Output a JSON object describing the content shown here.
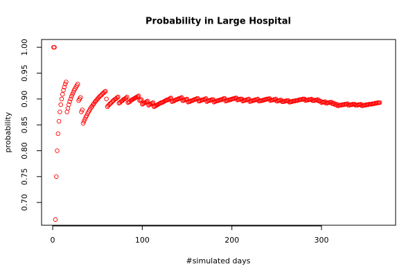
{
  "chart_data": {
    "type": "scatter",
    "title": "Probability in Large Hospital",
    "x_label": "#simulated days",
    "y_label": "probability",
    "color": "#ff0000",
    "xlim": [
      -12.4,
      382.7
    ],
    "ylim": [
      0.656,
      1.015
    ],
    "xticks": [
      0,
      100,
      200,
      300
    ],
    "yticks": [
      {
        "value": 0.7,
        "label": "0.70"
      },
      {
        "value": 0.75,
        "label": "0.75"
      },
      {
        "value": 0.8,
        "label": "0.80"
      },
      {
        "value": 0.85,
        "label": "0.85"
      },
      {
        "value": 0.9,
        "label": "0.90"
      },
      {
        "value": 0.95,
        "label": "0.95"
      },
      {
        "value": 1.0,
        "label": "1.00"
      }
    ],
    "x": [
      1,
      2,
      3,
      4,
      5,
      6,
      7,
      8,
      9,
      10,
      11,
      12,
      13,
      14,
      15,
      16,
      17,
      18,
      19,
      20,
      21,
      22,
      23,
      24,
      25,
      26,
      27,
      28,
      29,
      30,
      31,
      32,
      33,
      34,
      35,
      36,
      37,
      38,
      39,
      40,
      41,
      42,
      43,
      44,
      45,
      46,
      47,
      48,
      49,
      50,
      51,
      52,
      53,
      54,
      55,
      56,
      57,
      58,
      59,
      60,
      61,
      62,
      63,
      64,
      65,
      66,
      67,
      68,
      69,
      70,
      71,
      72,
      73,
      74,
      75,
      76,
      77,
      78,
      79,
      80,
      81,
      82,
      83,
      84,
      85,
      86,
      87,
      88,
      89,
      90,
      91,
      92,
      93,
      94,
      95,
      96,
      97,
      98,
      99,
      100,
      101,
      102,
      103,
      104,
      105,
      106,
      107,
      108,
      109,
      110,
      111,
      112,
      113,
      114,
      115,
      116,
      117,
      118,
      119,
      120,
      121,
      122,
      123,
      124,
      125,
      126,
      127,
      128,
      129,
      130,
      131,
      132,
      133,
      134,
      135,
      136,
      137,
      138,
      139,
      140,
      141,
      142,
      143,
      144,
      145,
      146,
      147,
      148,
      149,
      150,
      151,
      152,
      153,
      154,
      155,
      156,
      157,
      158,
      159,
      160,
      161,
      162,
      163,
      164,
      165,
      166,
      167,
      168,
      169,
      170,
      171,
      172,
      173,
      174,
      175,
      176,
      177,
      178,
      179,
      180,
      181,
      182,
      183,
      184,
      185,
      186,
      187,
      188,
      189,
      190,
      191,
      192,
      193,
      194,
      195,
      196,
      197,
      198,
      199,
      200,
      201,
      202,
      203,
      204,
      205,
      206,
      207,
      208,
      209,
      210,
      211,
      212,
      213,
      214,
      215,
      216,
      217,
      218,
      219,
      220,
      221,
      222,
      223,
      224,
      225,
      226,
      227,
      228,
      229,
      230,
      231,
      232,
      233,
      234,
      235,
      236,
      237,
      238,
      239,
      240,
      241,
      242,
      243,
      244,
      245,
      246,
      247,
      248,
      249,
      250,
      251,
      252,
      253,
      254,
      255,
      256,
      257,
      258,
      259,
      260,
      261,
      262,
      263,
      264,
      265,
      266,
      267,
      268,
      269,
      270,
      271,
      272,
      273,
      274,
      275,
      276,
      277,
      278,
      279,
      280,
      281,
      282,
      283,
      284,
      285,
      286,
      287,
      288,
      289,
      290,
      291,
      292,
      293,
      294,
      295,
      296,
      297,
      298,
      299,
      300,
      301,
      302,
      303,
      304,
      305,
      306,
      307,
      308,
      309,
      310,
      311,
      312,
      313,
      314,
      315,
      316,
      317,
      318,
      319,
      320,
      321,
      322,
      323,
      324,
      325,
      326,
      327,
      328,
      329,
      330,
      331,
      332,
      333,
      334,
      335,
      336,
      337,
      338,
      339,
      340,
      341,
      342,
      343,
      344,
      345,
      346,
      347,
      348,
      349,
      350,
      351,
      352,
      353,
      354,
      355,
      356,
      357,
      358,
      359,
      360,
      361,
      362,
      363,
      364,
      365
    ],
    "values": [
      1,
      1,
      0.667,
      0.75,
      0.8,
      0.833,
      0.857,
      0.875,
      0.889,
      0.9,
      0.909,
      0.917,
      0.923,
      0.929,
      0.933,
      0.875,
      0.882,
      0.889,
      0.895,
      0.9,
      0.905,
      0.909,
      0.913,
      0.917,
      0.92,
      0.923,
      0.926,
      0.929,
      0.897,
      0.9,
      0.903,
      0.875,
      0.879,
      0.853,
      0.857,
      0.861,
      0.865,
      0.868,
      0.872,
      0.875,
      0.878,
      0.881,
      0.884,
      0.886,
      0.889,
      0.891,
      0.894,
      0.896,
      0.898,
      0.9,
      0.902,
      0.904,
      0.906,
      0.907,
      0.909,
      0.911,
      0.912,
      0.914,
      0.915,
      0.9,
      0.885,
      0.887,
      0.889,
      0.891,
      0.892,
      0.894,
      0.896,
      0.897,
      0.899,
      0.9,
      0.901,
      0.903,
      0.904,
      0.892,
      0.893,
      0.895,
      0.896,
      0.897,
      0.899,
      0.9,
      0.901,
      0.902,
      0.904,
      0.893,
      0.894,
      0.895,
      0.897,
      0.898,
      0.899,
      0.9,
      0.901,
      0.902,
      0.903,
      0.904,
      0.905,
      0.906,
      0.897,
      0.898,
      0.899,
      0.89,
      0.891,
      0.892,
      0.893,
      0.894,
      0.895,
      0.896,
      0.888,
      0.889,
      0.89,
      0.891,
      0.892,
      0.893,
      0.885,
      0.886,
      0.887,
      0.888,
      0.889,
      0.89,
      0.891,
      0.892,
      0.893,
      0.893,
      0.894,
      0.895,
      0.896,
      0.897,
      0.898,
      0.898,
      0.899,
      0.9,
      0.901,
      0.902,
      0.895,
      0.896,
      0.896,
      0.897,
      0.898,
      0.899,
      0.899,
      0.9,
      0.901,
      0.901,
      0.902,
      0.903,
      0.897,
      0.897,
      0.898,
      0.899,
      0.899,
      0.9,
      0.894,
      0.895,
      0.895,
      0.896,
      0.897,
      0.897,
      0.898,
      0.899,
      0.899,
      0.9,
      0.901,
      0.901,
      0.896,
      0.896,
      0.897,
      0.898,
      0.898,
      0.899,
      0.899,
      0.9,
      0.901,
      0.895,
      0.896,
      0.897,
      0.897,
      0.898,
      0.898,
      0.899,
      0.899,
      0.894,
      0.895,
      0.896,
      0.896,
      0.897,
      0.897,
      0.898,
      0.898,
      0.899,
      0.899,
      0.9,
      0.901,
      0.901,
      0.896,
      0.897,
      0.897,
      0.898,
      0.898,
      0.899,
      0.899,
      0.9,
      0.9,
      0.901,
      0.901,
      0.902,
      0.902,
      0.898,
      0.899,
      0.899,
      0.9,
      0.9,
      0.9,
      0.896,
      0.897,
      0.897,
      0.898,
      0.898,
      0.899,
      0.899,
      0.9,
      0.895,
      0.896,
      0.896,
      0.897,
      0.897,
      0.898,
      0.898,
      0.899,
      0.899,
      0.9,
      0.896,
      0.896,
      0.897,
      0.897,
      0.897,
      0.898,
      0.898,
      0.899,
      0.899,
      0.9,
      0.9,
      0.9,
      0.901,
      0.897,
      0.898,
      0.898,
      0.898,
      0.899,
      0.899,
      0.9,
      0.896,
      0.896,
      0.897,
      0.897,
      0.898,
      0.898,
      0.895,
      0.895,
      0.895,
      0.896,
      0.896,
      0.897,
      0.897,
      0.897,
      0.894,
      0.894,
      0.895,
      0.895,
      0.896,
      0.896,
      0.896,
      0.897,
      0.897,
      0.897,
      0.898,
      0.898,
      0.899,
      0.899,
      0.899,
      0.9,
      0.9,
      0.9,
      0.897,
      0.898,
      0.898,
      0.898,
      0.899,
      0.899,
      0.899,
      0.9,
      0.897,
      0.897,
      0.897,
      0.898,
      0.898,
      0.898,
      0.899,
      0.896,
      0.896,
      0.896,
      0.893,
      0.894,
      0.894,
      0.894,
      0.895,
      0.892,
      0.892,
      0.893,
      0.893,
      0.893,
      0.894,
      0.894,
      0.891,
      0.891,
      0.892,
      0.889,
      0.889,
      0.89,
      0.887,
      0.887,
      0.888,
      0.888,
      0.888,
      0.889,
      0.889,
      0.889,
      0.89,
      0.89,
      0.89,
      0.891,
      0.888,
      0.888,
      0.889,
      0.889,
      0.889,
      0.89,
      0.89,
      0.89,
      0.888,
      0.888,
      0.888,
      0.889,
      0.889,
      0.889,
      0.89,
      0.887,
      0.887,
      0.888,
      0.888,
      0.888,
      0.889,
      0.889,
      0.889,
      0.89,
      0.89,
      0.89,
      0.89,
      0.891,
      0.891,
      0.891,
      0.892,
      0.892,
      0.892,
      0.893,
      0.893,
      0.893
    ]
  }
}
